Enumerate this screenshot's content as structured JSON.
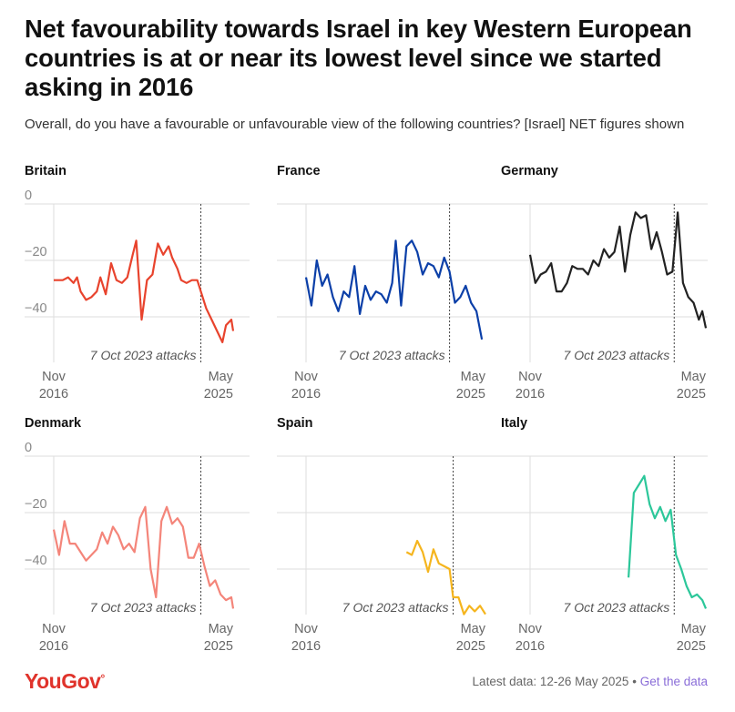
{
  "title": "Net favourability towards Israel in key Western European countries is at or near its lowest level since we started asking in 2016",
  "subtitle": "Overall, do you have a favourable or unfavourable view of the following countries? [Israel] NET figures shown",
  "brand": "YouGov",
  "footer": {
    "latest": "Latest data: 12-26 May 2025",
    "separator": "•",
    "link": "Get the data"
  },
  "chart_data": [
    {
      "type": "line",
      "title": "Britain",
      "color": "#e8432d",
      "x_start_label": [
        "Nov",
        "2016"
      ],
      "x_end_label": [
        "May",
        "2025"
      ],
      "annotation": "7 Oct 2023 attacks",
      "ylim": [
        -55,
        0
      ],
      "yticks": [
        0,
        -20,
        -40
      ],
      "x": [
        0,
        0.03,
        0.06,
        0.08,
        0.1,
        0.12,
        0.14,
        0.16,
        0.18,
        0.2,
        0.22,
        0.24,
        0.26,
        0.28,
        0.3,
        0.32,
        0.34,
        0.36,
        0.38,
        0.4,
        0.42,
        0.44,
        0.46,
        0.48,
        0.5,
        0.52,
        0.54,
        0.56,
        0.58,
        0.6,
        0.62,
        0.64,
        0.66,
        0.68,
        0.7,
        0.72,
        0.74,
        0.76,
        0.78,
        0.8,
        0.82,
        0.84,
        0.86,
        0.88,
        0.9,
        0.92,
        0.94,
        0.96,
        0.98,
        1.0
      ],
      "values": null,
      "points": [
        [
          0,
          -27
        ],
        [
          0.05,
          -27
        ],
        [
          0.08,
          -26
        ],
        [
          0.11,
          -28
        ],
        [
          0.13,
          -26
        ],
        [
          0.15,
          -31
        ],
        [
          0.18,
          -34
        ],
        [
          0.21,
          -33
        ],
        [
          0.24,
          -31
        ],
        [
          0.26,
          -26
        ],
        [
          0.29,
          -32
        ],
        [
          0.32,
          -21
        ],
        [
          0.35,
          -27
        ],
        [
          0.38,
          -28
        ],
        [
          0.41,
          -26
        ],
        [
          0.44,
          -18
        ],
        [
          0.46,
          -13
        ],
        [
          0.49,
          -41
        ],
        [
          0.52,
          -27
        ],
        [
          0.55,
          -25
        ],
        [
          0.58,
          -14
        ],
        [
          0.61,
          -18
        ],
        [
          0.64,
          -15
        ],
        [
          0.66,
          -19
        ],
        [
          0.69,
          -23
        ],
        [
          0.71,
          -27
        ],
        [
          0.74,
          -28
        ],
        [
          0.77,
          -27
        ],
        [
          0.8,
          -27
        ],
        [
          0.82,
          -31
        ],
        [
          0.85,
          -37
        ],
        [
          0.88,
          -41
        ],
        [
          0.91,
          -45
        ],
        [
          0.94,
          -49
        ],
        [
          0.96,
          -43
        ],
        [
          0.99,
          -41
        ],
        [
          1.0,
          -45
        ]
      ],
      "event_x": 0.82
    },
    {
      "type": "line",
      "title": "France",
      "color": "#0b3fa8",
      "x_start_label": [
        "Nov",
        "2016"
      ],
      "x_end_label": [
        "May",
        "2025"
      ],
      "annotation": "7 Oct 2023 attacks",
      "ylim": [
        -55,
        0
      ],
      "yticks": [
        0,
        -20,
        -40
      ],
      "points": [
        [
          0,
          -26
        ],
        [
          0.03,
          -36
        ],
        [
          0.06,
          -20
        ],
        [
          0.09,
          -29
        ],
        [
          0.12,
          -25
        ],
        [
          0.15,
          -33
        ],
        [
          0.18,
          -38
        ],
        [
          0.21,
          -31
        ],
        [
          0.24,
          -33
        ],
        [
          0.27,
          -22
        ],
        [
          0.3,
          -39
        ],
        [
          0.33,
          -29
        ],
        [
          0.36,
          -34
        ],
        [
          0.39,
          -31
        ],
        [
          0.42,
          -32
        ],
        [
          0.45,
          -35
        ],
        [
          0.48,
          -28
        ],
        [
          0.5,
          -13
        ],
        [
          0.53,
          -36
        ],
        [
          0.56,
          -15
        ],
        [
          0.59,
          -13
        ],
        [
          0.62,
          -17
        ],
        [
          0.65,
          -25
        ],
        [
          0.68,
          -21
        ],
        [
          0.71,
          -22
        ],
        [
          0.74,
          -26
        ],
        [
          0.77,
          -19
        ],
        [
          0.8,
          -24
        ],
        [
          0.83,
          -35
        ],
        [
          0.86,
          -33
        ],
        [
          0.89,
          -29
        ],
        [
          0.92,
          -35
        ],
        [
          0.95,
          -38
        ],
        [
          0.98,
          -48
        ]
      ],
      "event_x": 0.8
    },
    {
      "type": "line",
      "title": "Germany",
      "color": "#222222",
      "x_start_label": [
        "Nov",
        "2016"
      ],
      "x_end_label": [
        "May",
        "2025"
      ],
      "annotation": "7 Oct 2023 attacks",
      "ylim": [
        -55,
        0
      ],
      "yticks": [
        0,
        -20,
        -40
      ],
      "points": [
        [
          0,
          -18
        ],
        [
          0.03,
          -28
        ],
        [
          0.06,
          -25
        ],
        [
          0.09,
          -24
        ],
        [
          0.12,
          -21
        ],
        [
          0.15,
          -31
        ],
        [
          0.18,
          -31
        ],
        [
          0.21,
          -28
        ],
        [
          0.24,
          -22
        ],
        [
          0.27,
          -23
        ],
        [
          0.3,
          -23
        ],
        [
          0.33,
          -25
        ],
        [
          0.36,
          -20
        ],
        [
          0.39,
          -22
        ],
        [
          0.42,
          -16
        ],
        [
          0.45,
          -19
        ],
        [
          0.48,
          -17
        ],
        [
          0.51,
          -8
        ],
        [
          0.54,
          -24
        ],
        [
          0.57,
          -11
        ],
        [
          0.6,
          -3
        ],
        [
          0.63,
          -5
        ],
        [
          0.66,
          -4
        ],
        [
          0.69,
          -16
        ],
        [
          0.72,
          -10
        ],
        [
          0.75,
          -17
        ],
        [
          0.78,
          -25
        ],
        [
          0.81,
          -24
        ],
        [
          0.84,
          -3
        ],
        [
          0.87,
          -28
        ],
        [
          0.9,
          -33
        ],
        [
          0.93,
          -35
        ],
        [
          0.96,
          -41
        ],
        [
          0.98,
          -38
        ],
        [
          1.0,
          -44
        ]
      ],
      "event_x": 0.82
    },
    {
      "type": "line",
      "title": "Denmark",
      "color": "#f4857a",
      "x_start_label": [
        "Nov",
        "2016"
      ],
      "x_end_label": [
        "May",
        "2025"
      ],
      "annotation": "7 Oct 2023 attacks",
      "ylim": [
        -55,
        0
      ],
      "yticks": [
        0,
        -20,
        -40
      ],
      "points": [
        [
          0,
          -26
        ],
        [
          0.03,
          -35
        ],
        [
          0.06,
          -23
        ],
        [
          0.09,
          -31
        ],
        [
          0.12,
          -31
        ],
        [
          0.15,
          -34
        ],
        [
          0.18,
          -37
        ],
        [
          0.21,
          -35
        ],
        [
          0.24,
          -33
        ],
        [
          0.27,
          -27
        ],
        [
          0.3,
          -31
        ],
        [
          0.33,
          -25
        ],
        [
          0.36,
          -28
        ],
        [
          0.39,
          -33
        ],
        [
          0.42,
          -31
        ],
        [
          0.45,
          -34
        ],
        [
          0.48,
          -22
        ],
        [
          0.51,
          -18
        ],
        [
          0.54,
          -40
        ],
        [
          0.57,
          -50
        ],
        [
          0.6,
          -23
        ],
        [
          0.63,
          -18
        ],
        [
          0.66,
          -24
        ],
        [
          0.69,
          -22
        ],
        [
          0.72,
          -25
        ],
        [
          0.75,
          -36
        ],
        [
          0.78,
          -36
        ],
        [
          0.81,
          -31
        ],
        [
          0.84,
          -39
        ],
        [
          0.87,
          -46
        ],
        [
          0.9,
          -44
        ],
        [
          0.93,
          -49
        ],
        [
          0.96,
          -51
        ],
        [
          0.99,
          -50
        ],
        [
          1.0,
          -54
        ]
      ],
      "event_x": 0.82
    },
    {
      "type": "line",
      "title": "Spain",
      "color": "#f5b51e",
      "x_start_label": [
        "Nov",
        "2016"
      ],
      "x_end_label": [
        "May",
        "2025"
      ],
      "annotation": "7 Oct 2023 attacks",
      "ylim": [
        -55,
        0
      ],
      "yticks": [
        0,
        -20,
        -40
      ],
      "points": [
        [
          0.56,
          -34
        ],
        [
          0.59,
          -35
        ],
        [
          0.62,
          -30
        ],
        [
          0.65,
          -34
        ],
        [
          0.68,
          -41
        ],
        [
          0.71,
          -33
        ],
        [
          0.74,
          -38
        ],
        [
          0.77,
          -39
        ],
        [
          0.8,
          -40
        ],
        [
          0.82,
          -50
        ],
        [
          0.85,
          -50
        ],
        [
          0.88,
          -56
        ],
        [
          0.91,
          -53
        ],
        [
          0.94,
          -55
        ],
        [
          0.97,
          -53
        ],
        [
          1.0,
          -56
        ]
      ],
      "event_x": 0.82
    },
    {
      "type": "line",
      "title": "Italy",
      "color": "#2cc79a",
      "x_start_label": [
        "Nov",
        "2016"
      ],
      "x_end_label": [
        "May",
        "2025"
      ],
      "annotation": "7 Oct 2023 attacks",
      "ylim": [
        -55,
        0
      ],
      "yticks": [
        0,
        -20,
        -40
      ],
      "points": [
        [
          0.56,
          -43
        ],
        [
          0.59,
          -13
        ],
        [
          0.62,
          -10
        ],
        [
          0.65,
          -7
        ],
        [
          0.68,
          -17
        ],
        [
          0.71,
          -22
        ],
        [
          0.74,
          -18
        ],
        [
          0.77,
          -23
        ],
        [
          0.8,
          -19
        ],
        [
          0.83,
          -35
        ],
        [
          0.86,
          -40
        ],
        [
          0.89,
          -46
        ],
        [
          0.92,
          -50
        ],
        [
          0.95,
          -49
        ],
        [
          0.98,
          -51
        ],
        [
          1.0,
          -54
        ]
      ],
      "event_x": 0.82
    }
  ]
}
